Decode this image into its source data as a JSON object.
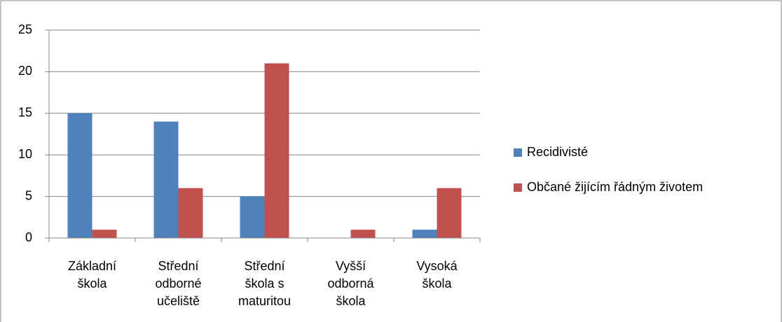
{
  "chart_data": {
    "type": "bar",
    "categories": [
      "Základní škola",
      "Střední odborné učeliště",
      "Střední škola s maturitou",
      "Vyšší odborná škola",
      "Vysoká škola"
    ],
    "series": [
      {
        "name": "Recidivisté",
        "color": "#4f81bd",
        "values": [
          15,
          14,
          5,
          0,
          1
        ]
      },
      {
        "name": "Občané žijícím řádným životem",
        "color": "#c0504d",
        "values": [
          1,
          6,
          21,
          1,
          6
        ]
      }
    ],
    "ylim": [
      0,
      25
    ],
    "yticks": [
      0,
      5,
      10,
      15,
      20,
      25
    ],
    "grid": true,
    "legend": "right"
  }
}
